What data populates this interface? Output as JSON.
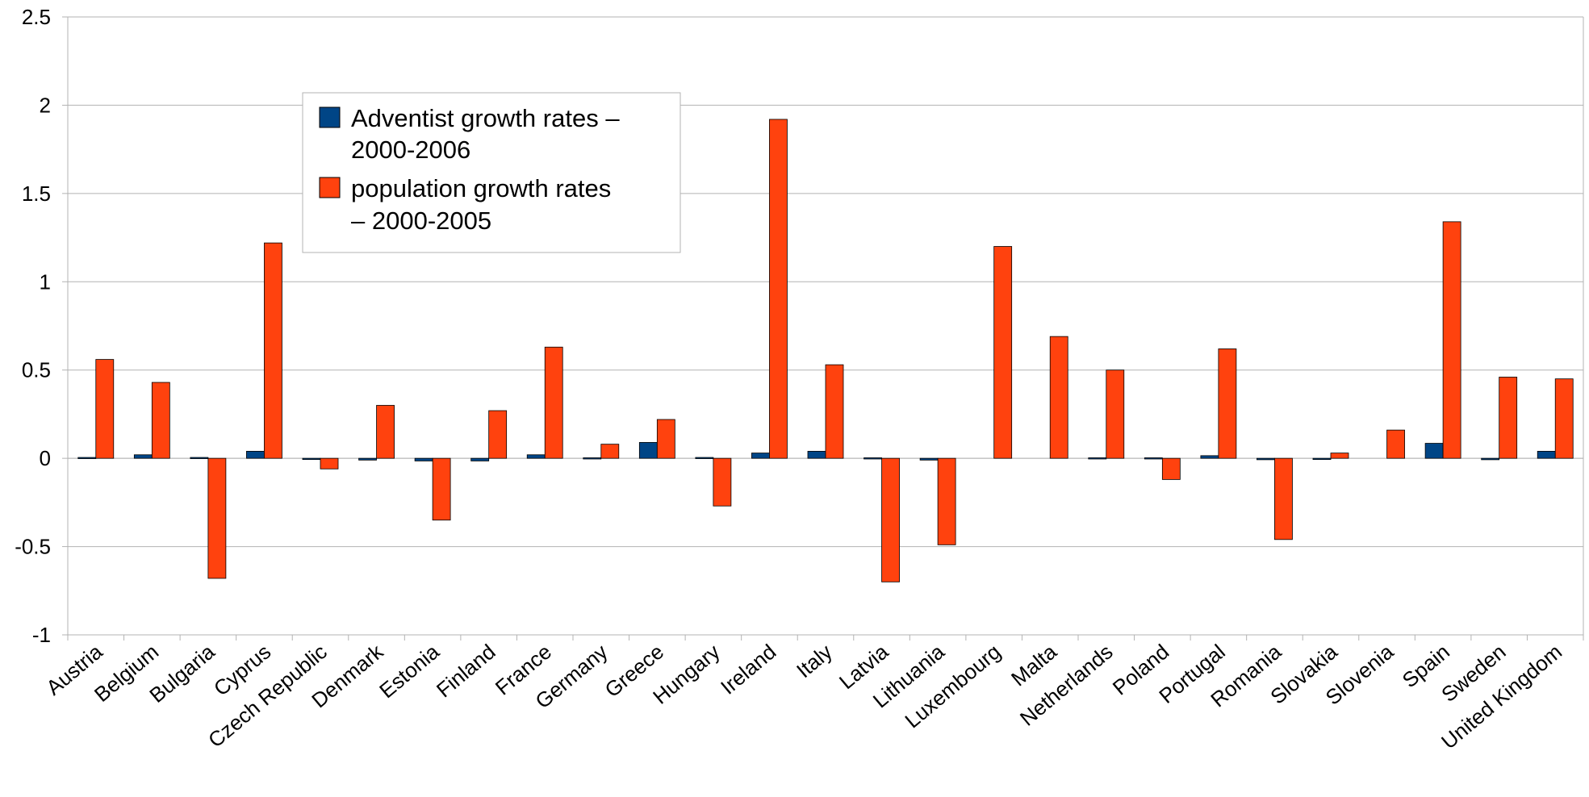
{
  "chart_data": {
    "type": "bar",
    "title": "",
    "xlabel": "",
    "ylabel": "",
    "ylim": [
      -1,
      2.5
    ],
    "yticks": [
      2.5,
      2,
      1.5,
      1,
      0.5,
      0,
      -0.5,
      -1
    ],
    "ytick_labels": [
      "2.5",
      "2",
      "1.5",
      "1",
      "0.5",
      "0",
      "-0.5",
      "-1"
    ],
    "grid": true,
    "legend_position": "top-left",
    "categories": [
      "Austria",
      "Belgium",
      "Bulgaria",
      "Cyprus",
      "Czech Republic",
      "Denmark",
      "Estonia",
      "Finland",
      "France",
      "Germany",
      "Greece",
      "Hungary",
      "Ireland",
      "Italy",
      "Latvia",
      "Lithuania",
      "Luxembourg",
      "Malta",
      "Netherlands",
      "Poland",
      "Portugal",
      "Romania",
      "Slovakia",
      "Slovenia",
      "Spain",
      "Sweden",
      "United Kingdom"
    ],
    "series": [
      {
        "name": "Adventist growth rates – 2000-2006",
        "color": "#004586",
        "values": [
          0.005,
          0.02,
          0.005,
          0.04,
          -0.005,
          -0.01,
          -0.015,
          -0.015,
          0.02,
          0.003,
          0.09,
          0.005,
          0.03,
          0.04,
          0.003,
          -0.01,
          0,
          0,
          0.003,
          0.003,
          0.015,
          -0.008,
          -0.002,
          0,
          0.085,
          -0.008,
          0.04
        ]
      },
      {
        "name": "population growth rates – 2000-2005",
        "color": "#ff420e",
        "values": [
          0.56,
          0.43,
          -0.68,
          1.22,
          -0.06,
          0.3,
          -0.35,
          0.27,
          0.63,
          0.08,
          0.22,
          -0.27,
          1.92,
          0.53,
          -0.7,
          -0.49,
          1.2,
          0.69,
          0.5,
          -0.12,
          0.62,
          -0.46,
          0.03,
          0.16,
          1.34,
          0.46,
          0.45
        ]
      }
    ],
    "legend": {
      "items": [
        {
          "line1": "Adventist growth rates –",
          "line2": "2000-2006",
          "color": "#004586"
        },
        {
          "line1": "population growth rates",
          "line2": "– 2000-2005",
          "color": "#ff420e"
        }
      ]
    }
  }
}
